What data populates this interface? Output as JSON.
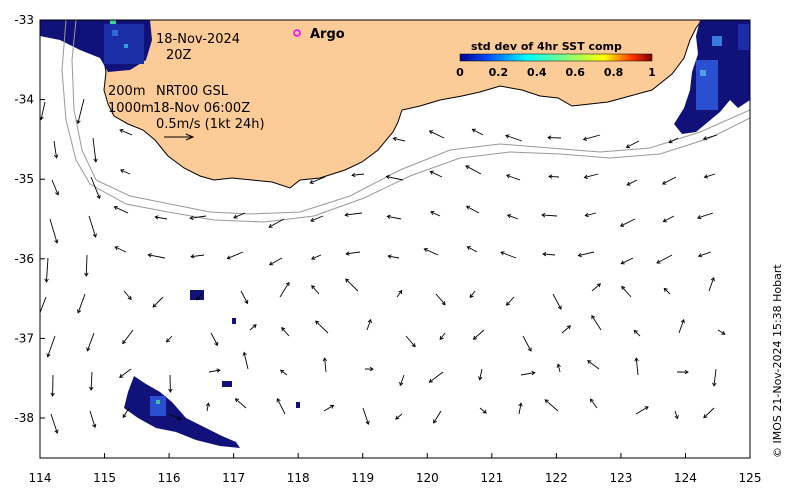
{
  "map": {
    "x_ticks": [
      "114",
      "115",
      "116",
      "117",
      "118",
      "119",
      "120",
      "121",
      "122",
      "123",
      "124",
      "125"
    ],
    "y_ticks": [
      "-33",
      "-34",
      "-35",
      "-36",
      "-37",
      "-38"
    ],
    "lon_range": [
      114,
      125
    ],
    "lat_range": [
      -38.5,
      -33
    ]
  },
  "annotations": {
    "date": "18-Nov-2024",
    "time": "20Z",
    "depth_200": "200m",
    "source": "NRT00 GSL",
    "depth_1000": "1000m",
    "model_time": "18-Nov 06:00Z",
    "scale_text": "0.5m/s (1kt 24h)"
  },
  "legend": {
    "argo_label": "Argo",
    "colorbar_title": "std dev of 4hr SST comp",
    "colorbar_ticks": [
      "0",
      "0.2",
      "0.4",
      "0.6",
      "0.8",
      "1"
    ]
  },
  "credit": "© IMOS 21-Nov-2024 15:38 Hobart",
  "colors": {
    "land": "#fbcb98",
    "sst_dark": "#10127a",
    "sst_mid": "#2a4fd0",
    "argo": "#ff00ff"
  }
}
